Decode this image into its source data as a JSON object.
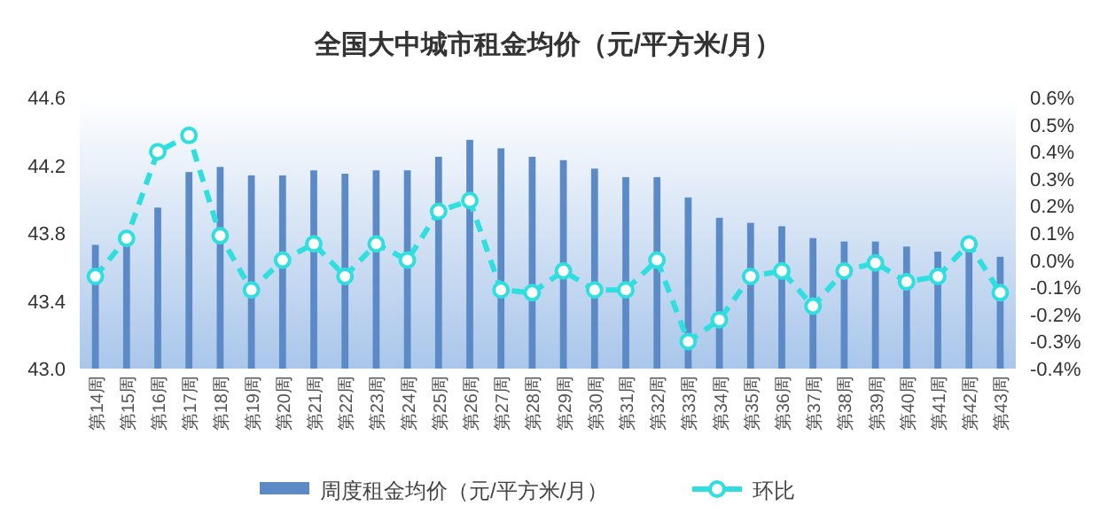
{
  "chart_data": {
    "type": "bar",
    "title": "全国大中城市租金均价（元/平方米/月）",
    "categories": [
      "第14周",
      "第15周",
      "第16周",
      "第17周",
      "第18周",
      "第19周",
      "第20周",
      "第21周",
      "第22周",
      "第23周",
      "第24周",
      "第25周",
      "第26周",
      "第27周",
      "第28周",
      "第29周",
      "第30周",
      "第31周",
      "第32周",
      "第33周",
      "第34周",
      "第35周",
      "第36周",
      "第37周",
      "第38周",
      "第39周",
      "第40周",
      "第41周",
      "第42周",
      "第43周"
    ],
    "series": [
      {
        "name": "周度租金均价（元/平方米/月）",
        "color": "#5b8ac6",
        "values": [
          43.73,
          43.75,
          43.95,
          44.16,
          44.19,
          44.14,
          44.14,
          44.17,
          44.15,
          44.17,
          44.17,
          44.25,
          44.35,
          44.3,
          44.25,
          44.23,
          44.18,
          44.13,
          44.13,
          44.01,
          43.89,
          43.86,
          43.84,
          43.77,
          43.75,
          43.75,
          43.72,
          43.69,
          43.71,
          43.66
        ]
      },
      {
        "name": "环比",
        "type": "line",
        "axis": "y2",
        "color": "#2fdfe0",
        "marker": "circle",
        "line_style": "dashed",
        "values": [
          -0.06,
          0.08,
          0.4,
          0.46,
          0.09,
          -0.11,
          0.0,
          0.06,
          -0.06,
          0.06,
          0.0,
          0.18,
          0.22,
          -0.11,
          -0.12,
          -0.04,
          -0.11,
          -0.11,
          0.0,
          -0.3,
          -0.22,
          -0.06,
          -0.04,
          -0.17,
          -0.04,
          -0.01,
          -0.08,
          -0.06,
          0.06,
          -0.12
        ]
      }
    ],
    "ylim": [
      43.0,
      44.6
    ],
    "yticks": [
      {
        "value": 43.0,
        "label": "43.0"
      },
      {
        "value": 43.4,
        "label": "43.4"
      },
      {
        "value": 43.8,
        "label": "43.8"
      },
      {
        "value": 44.2,
        "label": "44.2"
      },
      {
        "value": 44.6,
        "label": "44.6"
      }
    ],
    "y2lim": [
      -0.4,
      0.6
    ],
    "y2ticks": [
      {
        "value": -0.4,
        "label": "-0.4%"
      },
      {
        "value": -0.3,
        "label": "-0.3%"
      },
      {
        "value": -0.2,
        "label": "-0.2%"
      },
      {
        "value": -0.1,
        "label": "-0.1%"
      },
      {
        "value": 0.0,
        "label": "0.0%"
      },
      {
        "value": 0.1,
        "label": "0.1%"
      },
      {
        "value": 0.2,
        "label": "0.2%"
      },
      {
        "value": 0.3,
        "label": "0.3%"
      },
      {
        "value": 0.4,
        "label": "0.4%"
      },
      {
        "value": 0.5,
        "label": "0.5%"
      },
      {
        "value": 0.6,
        "label": "0.6%"
      }
    ],
    "grid": false,
    "legend": "bottom"
  }
}
